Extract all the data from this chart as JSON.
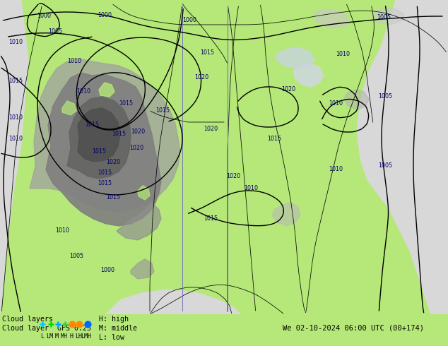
{
  "title_line1": "Cloud layers",
  "title_line2": "Cloud layer  GFS 0.25",
  "legend_H": "H: high",
  "legend_M": "M: middle",
  "legend_L": "L: low",
  "datetime_str": "We 02-10-2024 06:00 UTC (00+174)",
  "bg_color": "#b5e878",
  "footer_bg": "#c8c8c8",
  "figsize": [
    6.34,
    4.9
  ],
  "dpi": 100,
  "map_green": "#b5e878",
  "map_green_light": "#c8f090",
  "map_gray_dark": "#787878",
  "map_gray_mid": "#909090",
  "map_gray_light": "#b0b0b0",
  "map_white": "#e8e8e8",
  "ocean_color": "#d8d8d8",
  "pressure_labels": [
    [
      62,
      422,
      "1000"
    ],
    [
      148,
      423,
      "1000"
    ],
    [
      268,
      416,
      "1000"
    ],
    [
      22,
      385,
      "1010"
    ],
    [
      22,
      330,
      "1015"
    ],
    [
      22,
      278,
      "1010"
    ],
    [
      22,
      248,
      "1010"
    ],
    [
      78,
      400,
      "1005"
    ],
    [
      105,
      358,
      "1010"
    ],
    [
      118,
      315,
      "1010"
    ],
    [
      130,
      268,
      "1015"
    ],
    [
      140,
      230,
      "1015"
    ],
    [
      148,
      200,
      "1015"
    ],
    [
      160,
      215,
      "1020"
    ],
    [
      168,
      255,
      "1015"
    ],
    [
      178,
      298,
      "1015"
    ],
    [
      148,
      185,
      "1015"
    ],
    [
      160,
      165,
      "1015"
    ],
    [
      193,
      235,
      "1020"
    ],
    [
      195,
      258,
      "1020"
    ],
    [
      230,
      288,
      "1015"
    ],
    [
      298,
      262,
      "1020"
    ],
    [
      330,
      195,
      "1020"
    ],
    [
      408,
      318,
      "1020"
    ],
    [
      475,
      298,
      "1010"
    ],
    [
      475,
      205,
      "1010"
    ],
    [
      543,
      420,
      "1005"
    ],
    [
      545,
      308,
      "1005"
    ],
    [
      545,
      210,
      "1005"
    ],
    [
      88,
      118,
      "1010"
    ],
    [
      108,
      82,
      "1005"
    ],
    [
      152,
      62,
      "1000"
    ],
    [
      293,
      370,
      "1015"
    ],
    [
      285,
      335,
      "1020"
    ],
    [
      355,
      178,
      "1010"
    ],
    [
      485,
      368,
      "1010"
    ],
    [
      298,
      135,
      "1015"
    ],
    [
      388,
      248,
      "1015"
    ]
  ],
  "contour_color": "black",
  "isobar_color": "#1a1aff",
  "marker_colors": [
    "#00ccff",
    "#00dd00",
    "#00aaff",
    "#44cc44",
    "#ff8800",
    "#ff8800",
    "#0066ff"
  ],
  "marker_styles": [
    "+",
    "+",
    "+",
    "+",
    "o",
    "o",
    "o"
  ],
  "legend_labels": [
    "L",
    "LM",
    "M",
    "MH",
    "H",
    "LH",
    "LMH"
  ]
}
